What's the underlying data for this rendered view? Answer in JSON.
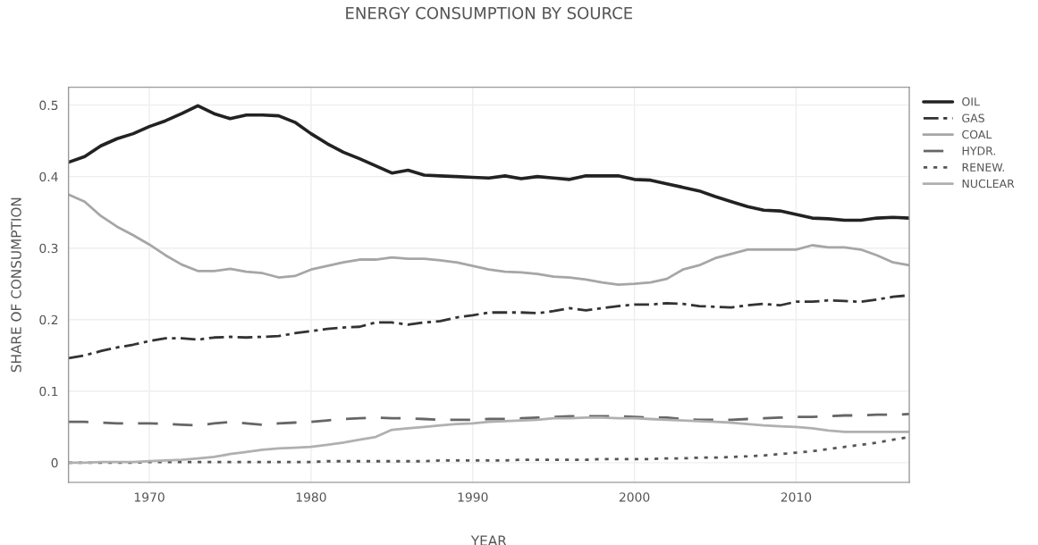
{
  "chart_data": {
    "type": "line",
    "title": "ENERGY CONSUMPTION BY SOURCE",
    "xlabel": "YEAR",
    "ylabel": "SHARE OF CONSUMPTION",
    "x": [
      1965,
      1966,
      1967,
      1968,
      1969,
      1970,
      1971,
      1972,
      1973,
      1974,
      1975,
      1976,
      1977,
      1978,
      1979,
      1980,
      1981,
      1982,
      1983,
      1984,
      1985,
      1986,
      1987,
      1988,
      1989,
      1990,
      1991,
      1992,
      1993,
      1994,
      1995,
      1996,
      1997,
      1998,
      1999,
      2000,
      2001,
      2002,
      2003,
      2004,
      2005,
      2006,
      2007,
      2008,
      2009,
      2010,
      2011,
      2012,
      2013,
      2014,
      2015,
      2016,
      2017
    ],
    "series": [
      {
        "name": "OIL",
        "color": "#222222",
        "line_style": "solid",
        "values": [
          0.42,
          0.428,
          0.443,
          0.453,
          0.46,
          0.47,
          0.478,
          0.488,
          0.499,
          0.488,
          0.481,
          0.486,
          0.486,
          0.485,
          0.476,
          0.46,
          0.446,
          0.434,
          0.425,
          0.415,
          0.405,
          0.409,
          0.402,
          0.401,
          0.4,
          0.399,
          0.398,
          0.401,
          0.397,
          0.4,
          0.398,
          0.396,
          0.401,
          0.401,
          0.401,
          0.396,
          0.395,
          0.39,
          0.385,
          0.38,
          0.372,
          0.365,
          0.358,
          0.353,
          0.352,
          0.347,
          0.342,
          0.341,
          0.339,
          0.339,
          0.342,
          0.343,
          0.342
        ]
      },
      {
        "name": "GAS",
        "color": "#333333",
        "line_style": "dashdot",
        "values": [
          0.146,
          0.15,
          0.156,
          0.161,
          0.165,
          0.17,
          0.174,
          0.174,
          0.172,
          0.175,
          0.176,
          0.175,
          0.176,
          0.177,
          0.181,
          0.184,
          0.187,
          0.189,
          0.19,
          0.196,
          0.196,
          0.193,
          0.196,
          0.198,
          0.203,
          0.206,
          0.21,
          0.21,
          0.21,
          0.209,
          0.212,
          0.216,
          0.213,
          0.216,
          0.219,
          0.221,
          0.221,
          0.223,
          0.222,
          0.219,
          0.218,
          0.217,
          0.22,
          0.222,
          0.22,
          0.225,
          0.225,
          0.227,
          0.226,
          0.225,
          0.228,
          0.232,
          0.234
        ]
      },
      {
        "name": "COAL",
        "color": "#a6a6a6",
        "line_style": "solid",
        "values": [
          0.375,
          0.365,
          0.345,
          0.33,
          0.318,
          0.305,
          0.29,
          0.277,
          0.268,
          0.268,
          0.271,
          0.267,
          0.265,
          0.259,
          0.261,
          0.27,
          0.275,
          0.28,
          0.284,
          0.284,
          0.287,
          0.285,
          0.285,
          0.283,
          0.28,
          0.275,
          0.27,
          0.267,
          0.266,
          0.264,
          0.26,
          0.259,
          0.256,
          0.252,
          0.249,
          0.25,
          0.252,
          0.257,
          0.27,
          0.276,
          0.286,
          0.292,
          0.298,
          0.298,
          0.298,
          0.298,
          0.304,
          0.301,
          0.301,
          0.298,
          0.29,
          0.28,
          0.276
        ]
      },
      {
        "name": "HYDR.",
        "color": "#666666",
        "line_style": "dashed",
        "values": [
          0.057,
          0.057,
          0.056,
          0.055,
          0.055,
          0.055,
          0.054,
          0.053,
          0.052,
          0.055,
          0.057,
          0.055,
          0.053,
          0.055,
          0.056,
          0.057,
          0.059,
          0.061,
          0.062,
          0.063,
          0.062,
          0.062,
          0.061,
          0.06,
          0.06,
          0.06,
          0.061,
          0.061,
          0.062,
          0.063,
          0.064,
          0.065,
          0.065,
          0.065,
          0.065,
          0.064,
          0.063,
          0.063,
          0.061,
          0.06,
          0.06,
          0.06,
          0.061,
          0.062,
          0.063,
          0.064,
          0.064,
          0.065,
          0.066,
          0.066,
          0.067,
          0.067,
          0.068
        ]
      },
      {
        "name": "RENEW.",
        "color": "#555555",
        "line_style": "dotted",
        "values": [
          0,
          0,
          0,
          0,
          0,
          0.001,
          0.001,
          0.001,
          0.001,
          0.001,
          0.001,
          0.001,
          0.001,
          0.001,
          0.001,
          0.001,
          0.002,
          0.002,
          0.002,
          0.002,
          0.002,
          0.002,
          0.002,
          0.003,
          0.003,
          0.003,
          0.003,
          0.003,
          0.004,
          0.004,
          0.004,
          0.004,
          0.004,
          0.005,
          0.005,
          0.005,
          0.005,
          0.006,
          0.006,
          0.007,
          0.007,
          0.008,
          0.009,
          0.01,
          0.012,
          0.014,
          0.016,
          0.019,
          0.022,
          0.025,
          0.028,
          0.032,
          0.036
        ]
      },
      {
        "name": "NUCLEAR",
        "color": "#b0b0b0",
        "line_style": "solid",
        "values": [
          0,
          0,
          0.001,
          0.001,
          0.001,
          0.002,
          0.003,
          0.004,
          0.006,
          0.008,
          0.012,
          0.015,
          0.018,
          0.02,
          0.021,
          0.022,
          0.025,
          0.028,
          0.032,
          0.036,
          0.046,
          0.048,
          0.05,
          0.052,
          0.054,
          0.055,
          0.057,
          0.058,
          0.059,
          0.06,
          0.062,
          0.062,
          0.063,
          0.063,
          0.062,
          0.062,
          0.061,
          0.06,
          0.059,
          0.058,
          0.057,
          0.056,
          0.054,
          0.052,
          0.051,
          0.05,
          0.048,
          0.045,
          0.043,
          0.043,
          0.043,
          0.043,
          0.043
        ]
      }
    ],
    "xlim": [
      1965,
      2017
    ],
    "xticks": [
      1970,
      1980,
      1990,
      2000,
      2010
    ],
    "ylim": [
      -0.0275,
      0.525
    ],
    "yticks": [
      0,
      0.1,
      0.2,
      0.3,
      0.4,
      0.5
    ],
    "grid": true,
    "legend": "top right",
    "marker": "none"
  }
}
